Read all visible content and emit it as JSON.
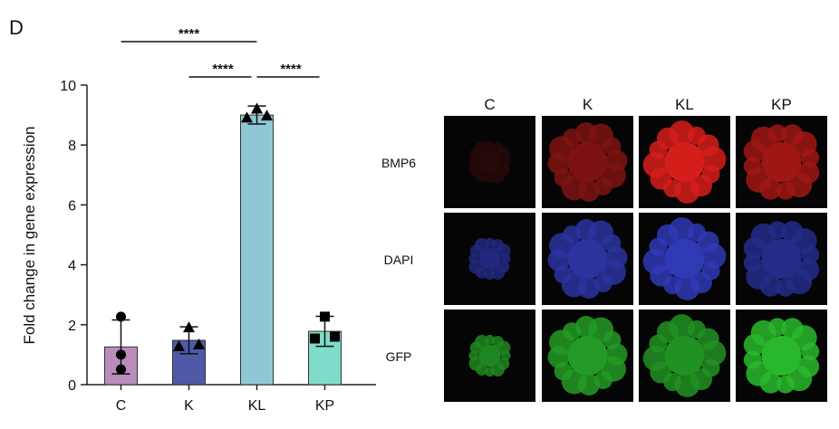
{
  "panel_label": "D",
  "chart_data": {
    "type": "bar",
    "y_label": "Fold change in gene expression",
    "categories": [
      "C",
      "K",
      "KL",
      "KP"
    ],
    "values": [
      1.26,
      1.48,
      9.0,
      1.78
    ],
    "errors": [
      0.9,
      0.45,
      0.3,
      0.5
    ],
    "colors": [
      "#b98cba",
      "#4f5aa6",
      "#8fc7d5",
      "#80dcc9"
    ],
    "points": [
      [
        2.27,
        1.0,
        0.51
      ],
      [
        1.9,
        1.27,
        1.33
      ],
      [
        9.2,
        8.9,
        8.97
      ],
      [
        2.27,
        1.54,
        1.6
      ]
    ],
    "markers": [
      "circle",
      "triangle",
      "triangle",
      "square"
    ],
    "ylim": [
      0,
      10
    ],
    "yticks": [
      0,
      2,
      4,
      6,
      8,
      10
    ],
    "annotations": [
      {
        "label": "****",
        "groups": [
          "C",
          "KL"
        ]
      },
      {
        "label": "****",
        "groups": [
          "K",
          "KL"
        ]
      },
      {
        "label": "****",
        "groups": [
          "KL",
          "KP"
        ]
      }
    ]
  },
  "image_grid": {
    "columns": [
      "C",
      "K",
      "KL",
      "KP"
    ],
    "rows": [
      "BMP6",
      "DAPI",
      "GFP"
    ],
    "channel_colors": [
      "#e0201c",
      "#3a47e0",
      "#2ecc30"
    ]
  }
}
